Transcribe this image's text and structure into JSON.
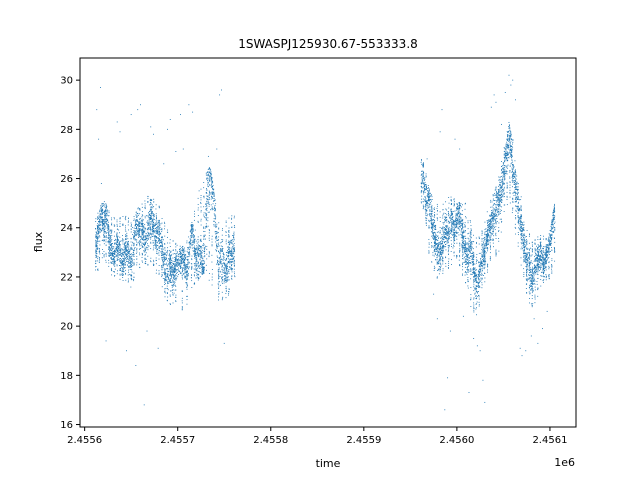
{
  "chart_data": {
    "type": "scatter",
    "title": "1SWASPJ125930.67-553333.8",
    "xlabel": "time",
    "ylabel": "flux",
    "x_offset_label": "1e6",
    "xlim": [
      2455595,
      2456128
    ],
    "ylim": [
      15.9,
      30.9
    ],
    "x_ticks": [
      2455600,
      2455700,
      2455800,
      2455900,
      2456000,
      2456100
    ],
    "x_tick_labels": [
      "2.4556",
      "2.4557",
      "2.4558",
      "2.4559",
      "2.4560",
      "2.4561"
    ],
    "y_ticks": [
      16,
      18,
      20,
      22,
      24,
      26,
      28,
      30
    ],
    "y_tick_labels": [
      "16",
      "18",
      "20",
      "22",
      "24",
      "26",
      "28",
      "30"
    ],
    "grid": false,
    "marker_color": "#1f77b4",
    "series": [
      {
        "points": [
          [
            2455612,
            23.2
          ],
          [
            2455614,
            23.8
          ],
          [
            2455616,
            24.2
          ],
          [
            2455619,
            24.6
          ],
          [
            2455621,
            24.0
          ],
          [
            2455623,
            24.8
          ],
          [
            2455626,
            23.6
          ],
          [
            2455629,
            23.1
          ],
          [
            2455632,
            22.6
          ],
          [
            2455635,
            23.4
          ],
          [
            2455638,
            22.9
          ],
          [
            2455641,
            22.4
          ],
          [
            2455644,
            23.3
          ],
          [
            2455647,
            23.0
          ],
          [
            2455650,
            22.3
          ],
          [
            2455653,
            23.5
          ],
          [
            2455656,
            24.3
          ],
          [
            2455659,
            23.7
          ],
          [
            2455662,
            24.0
          ],
          [
            2455665,
            23.2
          ],
          [
            2455668,
            23.9
          ],
          [
            2455671,
            24.5
          ],
          [
            2455674,
            24.1
          ],
          [
            2455677,
            23.6
          ],
          [
            2455680,
            23.8
          ],
          [
            2455683,
            23.3
          ],
          [
            2455686,
            22.4
          ],
          [
            2455689,
            22.0
          ],
          [
            2455692,
            22.6
          ],
          [
            2455695,
            21.9
          ],
          [
            2455698,
            22.5
          ],
          [
            2455705,
            22.8
          ],
          [
            2455710,
            22.2
          ],
          [
            2455715,
            24.0
          ],
          [
            2455718,
            23.1
          ],
          [
            2455722,
            22.6
          ],
          [
            2455725,
            22.9
          ],
          [
            2455728,
            22.1
          ],
          [
            2455731,
            25.2
          ],
          [
            2455734,
            25.8
          ],
          [
            2455737,
            26.0
          ],
          [
            2455744,
            22.4
          ],
          [
            2455748,
            22.8
          ],
          [
            2455752,
            22.0
          ],
          [
            2455755,
            23.2
          ],
          [
            2455758,
            22.7
          ],
          [
            2455761,
            23.5
          ]
        ],
        "low_band": [
          [
            2455612,
            22.0
          ],
          [
            2455620,
            22.8
          ],
          [
            2455630,
            22.0
          ],
          [
            2455640,
            21.8
          ],
          [
            2455650,
            21.5
          ],
          [
            2455660,
            22.4
          ],
          [
            2455670,
            22.5
          ],
          [
            2455680,
            22.0
          ],
          [
            2455688,
            20.9
          ],
          [
            2455696,
            20.8
          ],
          [
            2455708,
            20.6
          ],
          [
            2455716,
            21.6
          ],
          [
            2455730,
            22.2
          ],
          [
            2455745,
            20.9
          ],
          [
            2455755,
            21.2
          ],
          [
            2455761,
            21.5
          ]
        ],
        "high_band": [
          [
            2455612,
            24.5
          ],
          [
            2455620,
            25.2
          ],
          [
            2455630,
            24.4
          ],
          [
            2455640,
            24.6
          ],
          [
            2455650,
            24.3
          ],
          [
            2455660,
            25.0
          ],
          [
            2455670,
            25.4
          ],
          [
            2455680,
            24.9
          ],
          [
            2455688,
            24.0
          ],
          [
            2455696,
            23.4
          ],
          [
            2455708,
            23.2
          ],
          [
            2455716,
            24.4
          ],
          [
            2455730,
            26.3
          ],
          [
            2455735,
            26.5
          ],
          [
            2455745,
            24.0
          ],
          [
            2455755,
            24.5
          ],
          [
            2455761,
            24.6
          ]
        ],
        "outliers": [
          [
            2455613,
            28.8
          ],
          [
            2455615,
            27.6
          ],
          [
            2455617,
            29.7
          ],
          [
            2455618,
            25.8
          ],
          [
            2455623,
            19.4
          ],
          [
            2455635,
            28.3
          ],
          [
            2455638,
            27.9
          ],
          [
            2455645,
            19.0
          ],
          [
            2455650,
            28.6
          ],
          [
            2455655,
            18.4
          ],
          [
            2455657,
            28.8
          ],
          [
            2455660,
            29.0
          ],
          [
            2455664,
            16.8
          ],
          [
            2455667,
            19.8
          ],
          [
            2455671,
            28.1
          ],
          [
            2455674,
            27.8
          ],
          [
            2455679,
            19.1
          ],
          [
            2455685,
            26.6
          ],
          [
            2455689,
            28.0
          ],
          [
            2455692,
            28.4
          ],
          [
            2455698,
            27.1
          ],
          [
            2455703,
            28.6
          ],
          [
            2455706,
            27.2
          ],
          [
            2455712,
            29.0
          ],
          [
            2455716,
            28.7
          ],
          [
            2455723,
            25.5
          ],
          [
            2455733,
            26.9
          ],
          [
            2455742,
            27.2
          ],
          [
            2455745,
            29.4
          ],
          [
            2455747,
            29.6
          ],
          [
            2455750,
            19.3
          ]
        ]
      },
      {
        "points": [
          [
            2455962,
            25.7
          ],
          [
            2455964,
            26.4
          ],
          [
            2455967,
            24.8
          ],
          [
            2455970,
            25.4
          ],
          [
            2455973,
            24.1
          ],
          [
            2455976,
            23.6
          ],
          [
            2455979,
            23.2
          ],
          [
            2455982,
            22.8
          ],
          [
            2455985,
            23.5
          ],
          [
            2455988,
            24.0
          ],
          [
            2455991,
            23.7
          ],
          [
            2455994,
            24.4
          ],
          [
            2455997,
            23.8
          ],
          [
            2456000,
            24.3
          ],
          [
            2456003,
            24.6
          ],
          [
            2456006,
            23.6
          ],
          [
            2456009,
            23.0
          ],
          [
            2456012,
            22.6
          ],
          [
            2456015,
            23.5
          ],
          [
            2456018,
            22.3
          ],
          [
            2456021,
            21.6
          ],
          [
            2456024,
            22.0
          ],
          [
            2456027,
            22.8
          ],
          [
            2456030,
            23.0
          ],
          [
            2456033,
            23.8
          ],
          [
            2456036,
            24.0
          ],
          [
            2456039,
            24.4
          ],
          [
            2456042,
            24.8
          ],
          [
            2456045,
            25.2
          ],
          [
            2456048,
            25.6
          ],
          [
            2456051,
            26.3
          ],
          [
            2456054,
            27.3
          ],
          [
            2456057,
            27.8
          ],
          [
            2456060,
            26.4
          ],
          [
            2456063,
            25.8
          ],
          [
            2456066,
            24.8
          ],
          [
            2456069,
            24.2
          ],
          [
            2456072,
            23.4
          ],
          [
            2456075,
            22.7
          ],
          [
            2456078,
            22.3
          ],
          [
            2456081,
            21.8
          ],
          [
            2456084,
            22.5
          ],
          [
            2456087,
            22.6
          ],
          [
            2456090,
            23.0
          ],
          [
            2456093,
            22.4
          ],
          [
            2456096,
            22.9
          ],
          [
            2456099,
            23.2
          ],
          [
            2456102,
            24.0
          ],
          [
            2456105,
            24.6
          ]
        ],
        "low_band": [
          [
            2455962,
            25.0
          ],
          [
            2455966,
            24.5
          ],
          [
            2455970,
            22.8
          ],
          [
            2455980,
            21.8
          ],
          [
            2455990,
            22.3
          ],
          [
            2456000,
            22.6
          ],
          [
            2456010,
            21.6
          ],
          [
            2456020,
            20.3
          ],
          [
            2456026,
            21.0
          ],
          [
            2456035,
            22.5
          ],
          [
            2456045,
            23.0
          ],
          [
            2456052,
            24.8
          ],
          [
            2456058,
            25.0
          ],
          [
            2456065,
            23.2
          ],
          [
            2456072,
            21.8
          ],
          [
            2456080,
            20.5
          ],
          [
            2456090,
            21.5
          ],
          [
            2456098,
            21.8
          ],
          [
            2456105,
            22.4
          ]
        ],
        "high_band": [
          [
            2455962,
            26.8
          ],
          [
            2455966,
            26.6
          ],
          [
            2455970,
            25.6
          ],
          [
            2455980,
            24.9
          ],
          [
            2455990,
            25.4
          ],
          [
            2456000,
            25.2
          ],
          [
            2456010,
            25.0
          ],
          [
            2456020,
            23.6
          ],
          [
            2456026,
            23.8
          ],
          [
            2456035,
            25.0
          ],
          [
            2456045,
            26.2
          ],
          [
            2456052,
            27.6
          ],
          [
            2456056,
            28.3
          ],
          [
            2456060,
            27.6
          ],
          [
            2456065,
            26.0
          ],
          [
            2456072,
            24.8
          ],
          [
            2456080,
            23.4
          ],
          [
            2456090,
            23.8
          ],
          [
            2456098,
            23.5
          ],
          [
            2456105,
            25.0
          ]
        ],
        "outliers": [
          [
            2455968,
            26.8
          ],
          [
            2455975,
            21.3
          ],
          [
            2455979,
            20.3
          ],
          [
            2455982,
            27.9
          ],
          [
            2455984,
            28.8
          ],
          [
            2455987,
            16.6
          ],
          [
            2455990,
            17.9
          ],
          [
            2455993,
            19.8
          ],
          [
            2455998,
            27.6
          ],
          [
            2456003,
            27.2
          ],
          [
            2456007,
            20.4
          ],
          [
            2456010,
            24.4
          ],
          [
            2456013,
            17.3
          ],
          [
            2456015,
            20.8
          ],
          [
            2456018,
            19.5
          ],
          [
            2456022,
            19.2
          ],
          [
            2456025,
            19.0
          ],
          [
            2456028,
            17.8
          ],
          [
            2456030,
            16.9
          ],
          [
            2456037,
            28.9
          ],
          [
            2456040,
            29.4
          ],
          [
            2456042,
            29.1
          ],
          [
            2456048,
            28.2
          ],
          [
            2456052,
            29.5
          ],
          [
            2456056,
            30.2
          ],
          [
            2456058,
            29.8
          ],
          [
            2456060,
            30.0
          ],
          [
            2456063,
            29.2
          ],
          [
            2456068,
            19.1
          ],
          [
            2456070,
            18.8
          ],
          [
            2456074,
            19.0
          ],
          [
            2456080,
            19.6
          ],
          [
            2456083,
            20.3
          ],
          [
            2456087,
            19.3
          ],
          [
            2456092,
            19.9
          ],
          [
            2456097,
            20.6
          ]
        ]
      }
    ]
  }
}
